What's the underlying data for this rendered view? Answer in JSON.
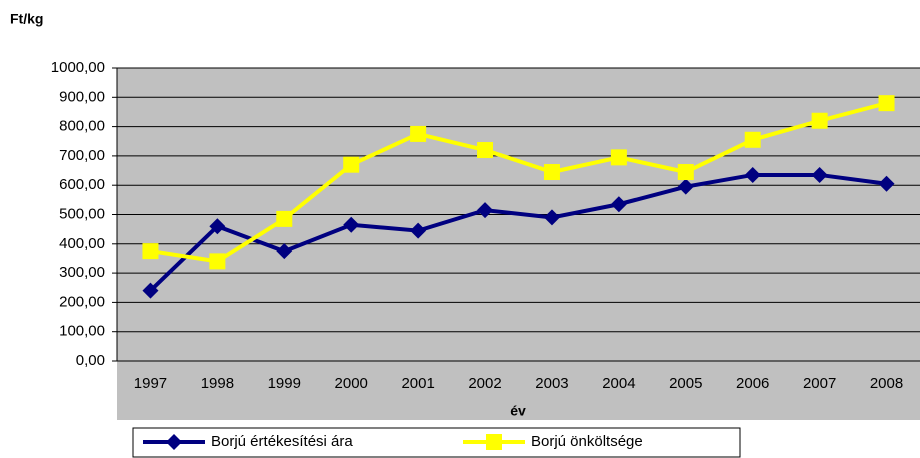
{
  "chart_data": {
    "type": "line",
    "y_label": "Ft/kg",
    "x_label": "év",
    "categories": [
      "1997",
      "1998",
      "1999",
      "2000",
      "2001",
      "2002",
      "2003",
      "2004",
      "2005",
      "2006",
      "2007",
      "2008"
    ],
    "series": [
      {
        "name": "Borjú értékesítési ára",
        "color": "#000080",
        "marker": "diamond",
        "values": [
          240,
          460,
          375,
          465,
          445,
          515,
          490,
          535,
          595,
          635,
          635,
          605
        ]
      },
      {
        "name": "Borjú önköltsége",
        "color": "#ffff00",
        "marker": "square",
        "values": [
          375,
          340,
          485,
          670,
          775,
          720,
          645,
          695,
          645,
          755,
          820,
          880
        ]
      }
    ],
    "ylim": [
      0,
      1000
    ],
    "yticks": [
      {
        "value": 0,
        "label": "0,00"
      },
      {
        "value": 100,
        "label": "100,00"
      },
      {
        "value": 200,
        "label": "200,00"
      },
      {
        "value": 300,
        "label": "300,00"
      },
      {
        "value": 400,
        "label": "400,00"
      },
      {
        "value": 500,
        "label": "500,00"
      },
      {
        "value": 600,
        "label": "600,00"
      },
      {
        "value": 700,
        "label": "700,00"
      },
      {
        "value": 800,
        "label": "800,00"
      },
      {
        "value": 900,
        "label": "900,00"
      },
      {
        "value": 1000,
        "label": "1000,00"
      }
    ],
    "grid": true,
    "legend": "bottom"
  }
}
